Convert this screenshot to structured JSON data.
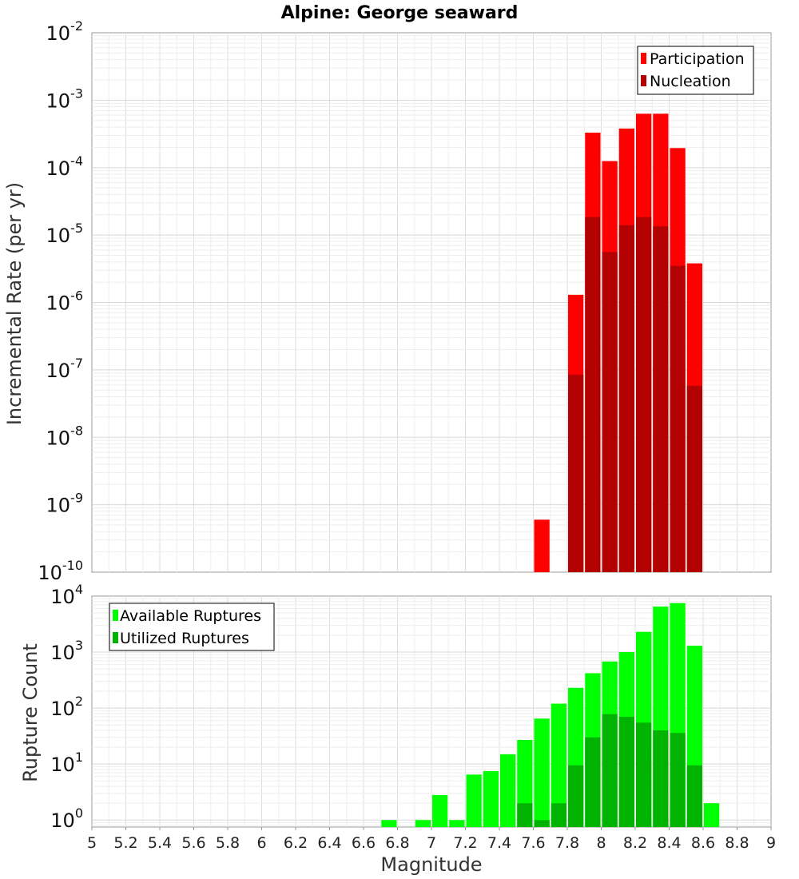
{
  "title": "Alpine: George seaward",
  "chart_data": [
    {
      "type": "bar",
      "name": "incremental-rate",
      "ylabel": "Incremental Rate (per yr)",
      "yscale": "log",
      "ylim": [
        1e-10,
        0.01
      ],
      "yticks": [
        {
          "value": 1e-10,
          "base": "10",
          "exp": "-10"
        },
        {
          "value": 1e-09,
          "base": "10",
          "exp": "-9"
        },
        {
          "value": 1e-08,
          "base": "10",
          "exp": "-8"
        },
        {
          "value": 1e-07,
          "base": "10",
          "exp": "-7"
        },
        {
          "value": 1e-06,
          "base": "10",
          "exp": "-6"
        },
        {
          "value": 1e-05,
          "base": "10",
          "exp": "-5"
        },
        {
          "value": 0.0001,
          "base": "10",
          "exp": "-4"
        },
        {
          "value": 0.001,
          "base": "10",
          "exp": "-3"
        },
        {
          "value": 0.01,
          "base": "10",
          "exp": "-2"
        }
      ],
      "xlim": [
        5,
        9
      ],
      "bin_width": 0.1,
      "grid": true,
      "legend_position": "top-right",
      "series": [
        {
          "name": "Participation",
          "color": "#ff0000",
          "x": [
            7.65,
            7.85,
            7.95,
            8.05,
            8.15,
            8.25,
            8.35,
            8.45,
            8.55
          ],
          "values": [
            6e-10,
            1.3e-06,
            0.00033,
            0.000125,
            0.00038,
            0.00063,
            0.00063,
            0.000195,
            3.8e-06
          ]
        },
        {
          "name": "Nucleation",
          "color": "#b30000",
          "x": [
            7.85,
            7.95,
            8.05,
            8.15,
            8.25,
            8.35,
            8.45,
            8.55
          ],
          "values": [
            8.5e-08,
            1.85e-05,
            5.6e-06,
            1.4e-05,
            1.85e-05,
            1.35e-05,
            3.5e-06,
            5.8e-08
          ]
        }
      ]
    },
    {
      "type": "bar",
      "name": "rupture-count",
      "xlabel": "Magnitude",
      "ylabel": "Rupture Count",
      "yscale": "log",
      "ylim": [
        0.75,
        10000
      ],
      "yticks": [
        {
          "value": 1,
          "base": "10",
          "exp": "0"
        },
        {
          "value": 10,
          "base": "10",
          "exp": "1"
        },
        {
          "value": 100,
          "base": "10",
          "exp": "2"
        },
        {
          "value": 1000,
          "base": "10",
          "exp": "3"
        },
        {
          "value": 10000,
          "base": "10",
          "exp": "4"
        }
      ],
      "xlim": [
        5,
        9
      ],
      "xticks": [
        "5",
        "5.2",
        "5.4",
        "5.6",
        "5.8",
        "6",
        "6.2",
        "6.4",
        "6.6",
        "6.8",
        "7",
        "7.2",
        "7.4",
        "7.6",
        "7.8",
        "8",
        "8.2",
        "8.4",
        "8.6",
        "8.8",
        "9"
      ],
      "bin_width": 0.1,
      "grid": true,
      "legend_position": "top-left",
      "series": [
        {
          "name": "Available Ruptures",
          "color": "#00ff00",
          "x": [
            6.75,
            6.95,
            7.05,
            7.15,
            7.25,
            7.35,
            7.45,
            7.55,
            7.65,
            7.75,
            7.85,
            7.95,
            8.05,
            8.15,
            8.25,
            8.35,
            8.45,
            8.55,
            8.65
          ],
          "values": [
            1,
            1,
            2.8,
            1,
            6.5,
            7.5,
            15,
            27,
            65,
            120,
            230,
            420,
            680,
            1000,
            2300,
            6500,
            7500,
            1300,
            2
          ]
        },
        {
          "name": "Utilized Ruptures",
          "color": "#00b300",
          "x": [
            7.55,
            7.65,
            7.75,
            7.85,
            7.95,
            8.05,
            8.15,
            8.25,
            8.35,
            8.45,
            8.55
          ],
          "values": [
            2,
            1,
            2,
            9.5,
            30,
            78,
            70,
            55,
            40,
            36,
            9.5
          ]
        }
      ]
    }
  ]
}
